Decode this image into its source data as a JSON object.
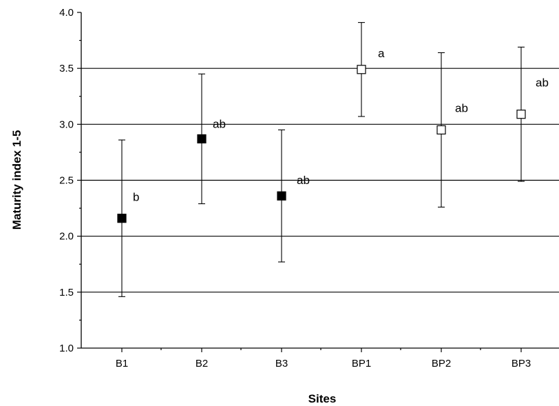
{
  "chart_data": {
    "type": "scatter",
    "title": "",
    "xlabel": "Sites",
    "ylabel": "Maturity index 1-5",
    "ylim": [
      1.0,
      4.0
    ],
    "y_ticks": [
      "1.0",
      "1.5",
      "2.0",
      "2.5",
      "3.0",
      "3.5",
      "4.0"
    ],
    "grid": "horizontal",
    "categories": [
      "B1",
      "B2",
      "B3",
      "BP1",
      "BP2",
      "BP3"
    ],
    "values": [
      2.16,
      2.87,
      2.36,
      3.49,
      2.95,
      3.09
    ],
    "error_upper": [
      2.86,
      3.45,
      2.95,
      3.91,
      3.64,
      3.69
    ],
    "error_lower": [
      1.46,
      2.29,
      1.77,
      3.07,
      2.26,
      2.49
    ],
    "significance_letters": [
      "b",
      "ab",
      "ab",
      "a",
      "ab",
      "ab"
    ],
    "marker_fill": [
      "#000000",
      "#000000",
      "#000000",
      "#ffffff",
      "#ffffff",
      "#ffffff"
    ]
  }
}
